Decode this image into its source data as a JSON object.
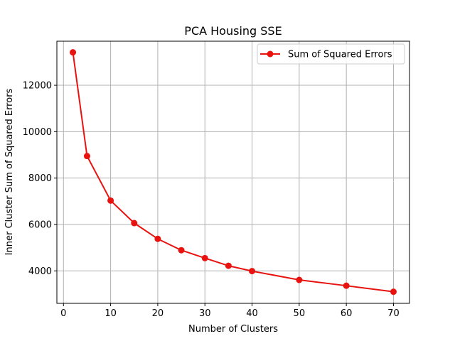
{
  "chart_data": {
    "type": "line",
    "title": "PCA Housing SSE",
    "xlabel": "Number of Clusters",
    "ylabel": "Inner Cluster Sum of Squared Errors",
    "xlim": [
      -1.4,
      73.4
    ],
    "ylim": [
      2600,
      13900
    ],
    "xticks": [
      0,
      10,
      20,
      30,
      40,
      50,
      60,
      70
    ],
    "yticks": [
      4000,
      6000,
      8000,
      10000,
      12000
    ],
    "grid": true,
    "legend_position": "top-right",
    "series": [
      {
        "name": "Sum of Squared Errors",
        "color": "#e8130f",
        "marker": "circle",
        "x": [
          2,
          5,
          10,
          15,
          20,
          25,
          30,
          35,
          40,
          50,
          60,
          70
        ],
        "y": [
          13420,
          8950,
          7030,
          6060,
          5380,
          4890,
          4550,
          4220,
          3990,
          3610,
          3360,
          3100
        ]
      }
    ]
  }
}
